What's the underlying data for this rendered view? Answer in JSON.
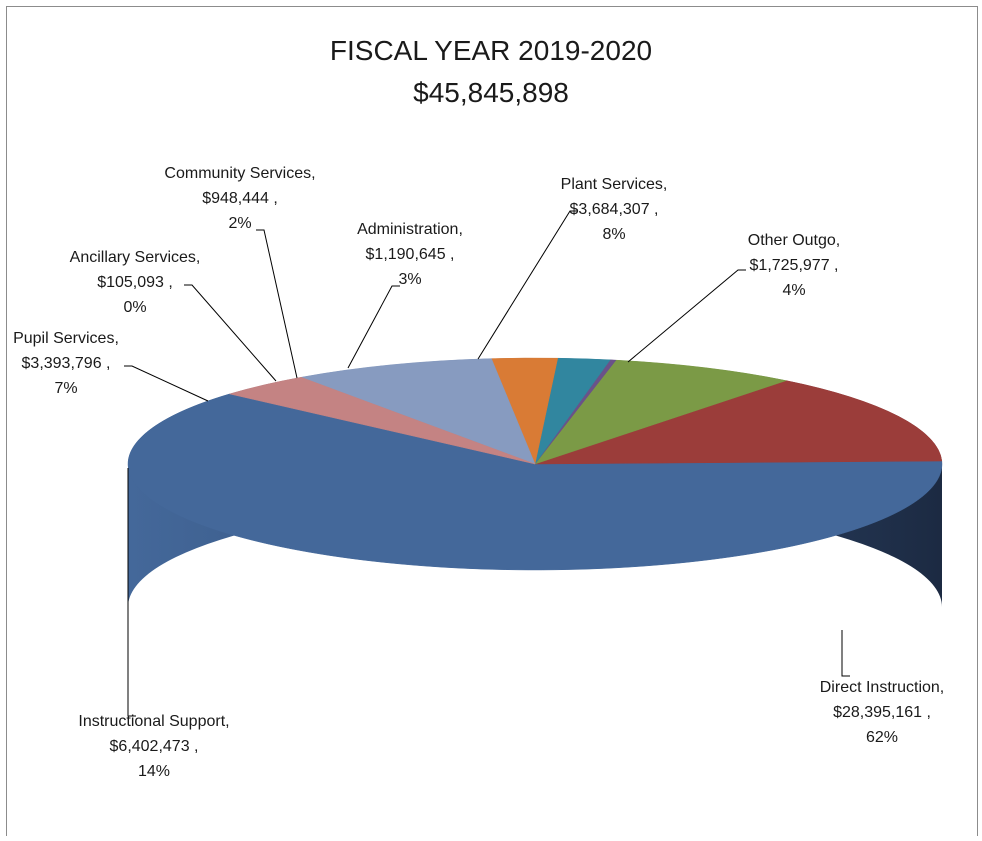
{
  "chart_data": {
    "type": "pie",
    "title": "FISCAL YEAR 2019-2020",
    "subtitle": "$45,845,898",
    "slices": [
      {
        "name": "Direct Instruction",
        "value": 28395161,
        "value_label": "$28,395,161 ,",
        "percent_label": "62%",
        "color": "#44689a"
      },
      {
        "name": "Instructional  Support",
        "value": 6402473,
        "value_label": "$6,402,473 ,",
        "percent_label": "14%",
        "color": "#9b3d3a"
      },
      {
        "name": "Pupil Services",
        "value": 3393796,
        "value_label": "$3,393,796 ,",
        "percent_label": "7%",
        "color": "#7b9a46"
      },
      {
        "name": "Ancillary Services",
        "value": 105093,
        "value_label": "$105,093 ,",
        "percent_label": "0%",
        "color": "#6a5289"
      },
      {
        "name": "Community Services",
        "value": 948444,
        "value_label": "$948,444 ,",
        "percent_label": "2%",
        "color": "#31869f"
      },
      {
        "name": "Administration",
        "value": 1190645,
        "value_label": "$1,190,645 ,",
        "percent_label": "3%",
        "color": "#d97b35"
      },
      {
        "name": "Plant Services",
        "value": 3684307,
        "value_label": "$3,684,307 ,",
        "percent_label": "8%",
        "color": "#879bc0"
      },
      {
        "name": "Other Outgo",
        "value": 1725977,
        "value_label": "$1,725,977 ,",
        "percent_label": "4%",
        "color": "#c48383"
      }
    ]
  }
}
